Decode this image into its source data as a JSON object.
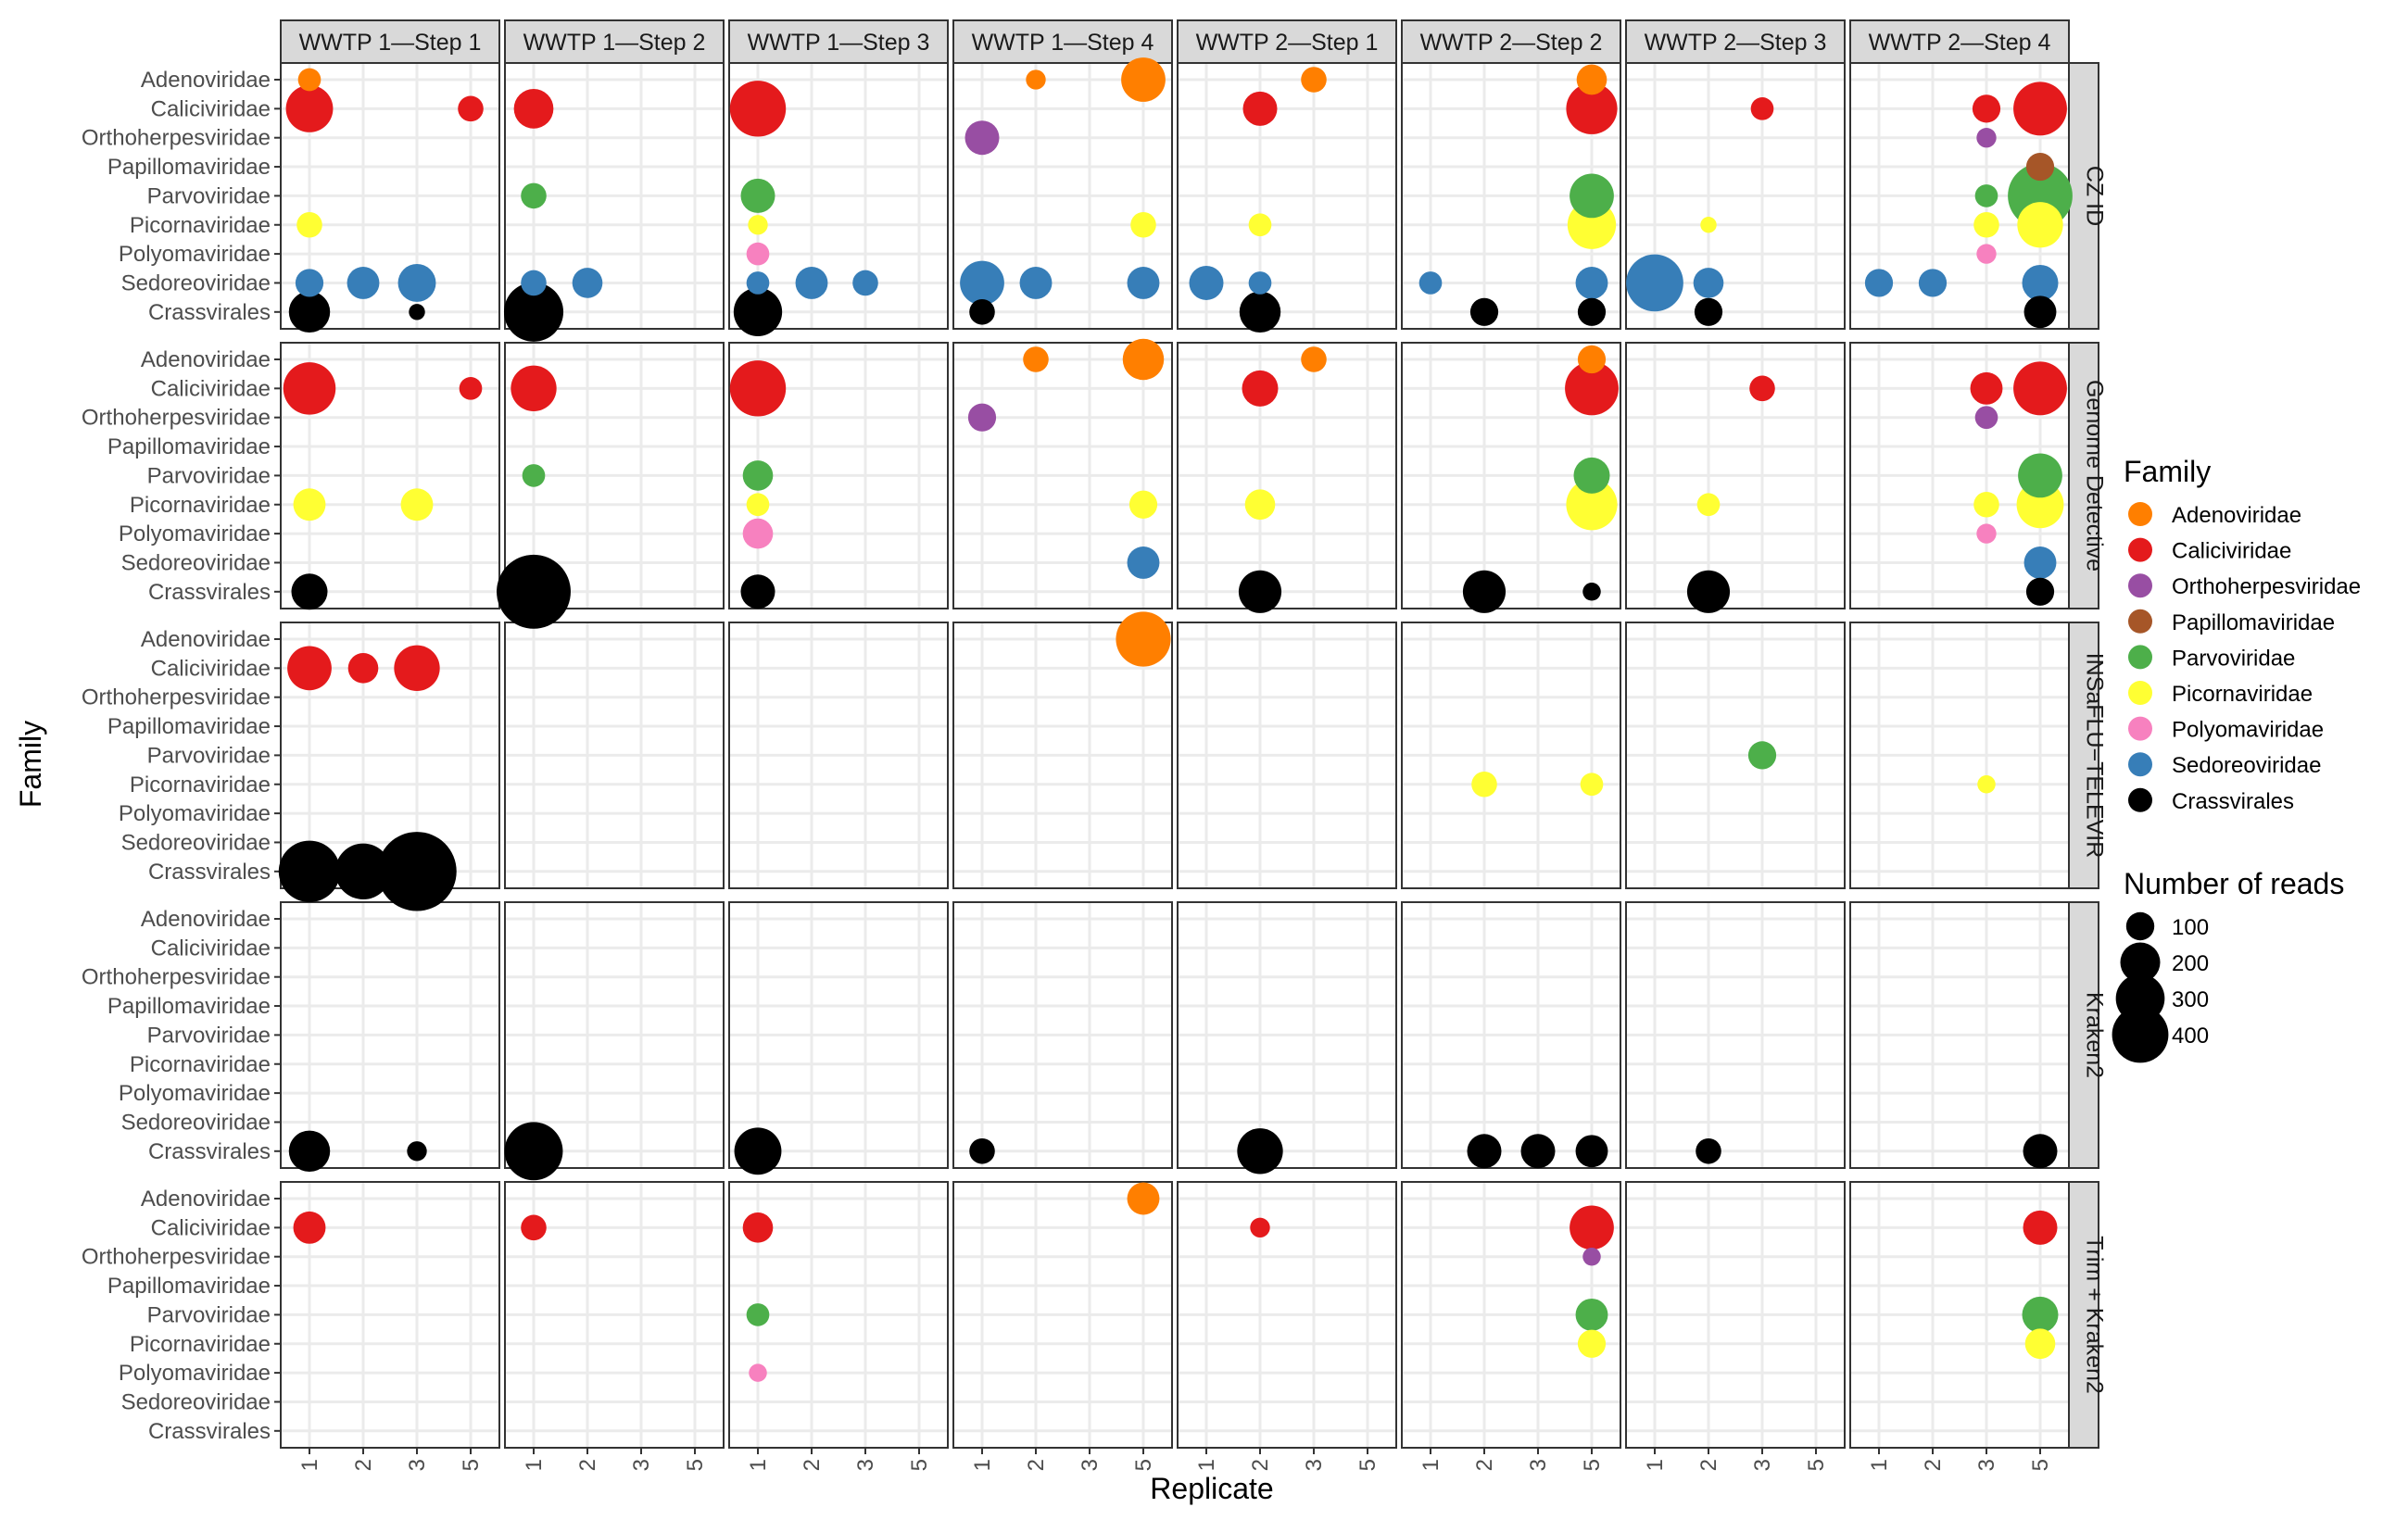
{
  "chart_data": {
    "type": "scatter",
    "xlabel": "Replicate",
    "ylabel": "Family",
    "x_ticks": [
      "1",
      "2",
      "3",
      "5"
    ],
    "x_values": [
      1,
      2,
      3,
      4
    ],
    "families": [
      "Adenoviridae",
      "Caliciviridae",
      "Orthoherpesviridae",
      "Papillomaviridae",
      "Parvoviridae",
      "Picornaviridae",
      "Polyomaviridae",
      "Sedoreoviridae",
      "Crassvirales"
    ],
    "colors": {
      "Adenoviridae": "#FF7F00",
      "Caliciviridae": "#E41A1C",
      "Orthoherpesviridae": "#984EA3",
      "Papillomaviridae": "#A65628",
      "Parvoviridae": "#4DAF4A",
      "Picornaviridae": "#FFFF33",
      "Polyomaviridae": "#F781BF",
      "Sedoreoviridae": "#377EB8",
      "Crassvirales": "#000000"
    },
    "columns": [
      "WWTP 1—Step 1",
      "WWTP 1—Step 2",
      "WWTP 1—Step 3",
      "WWTP 1—Step 4",
      "WWTP 2—Step 1",
      "WWTP 2—Step 2",
      "WWTP 2—Step 3",
      "WWTP 2—Step 4"
    ],
    "rows": [
      "CZ ID",
      "Genome Detective",
      "INSaFLU−TELEVIR",
      "Kraken2",
      "Trim + Kraken2"
    ],
    "legend": {
      "color_title": "Family",
      "size_title": "Number of reads",
      "size_breaks": [
        100,
        200,
        300,
        400
      ],
      "position": "right"
    },
    "grid": true,
    "points": [
      {
        "row": 0,
        "col": 0,
        "x": 1,
        "family": "Adenoviridae",
        "reads": 40
      },
      {
        "row": 0,
        "col": 0,
        "x": 1,
        "family": "Caliciviridae",
        "reads": 170
      },
      {
        "row": 0,
        "col": 0,
        "x": 4,
        "family": "Caliciviridae",
        "reads": 50
      },
      {
        "row": 0,
        "col": 0,
        "x": 1,
        "family": "Picornaviridae",
        "reads": 50
      },
      {
        "row": 0,
        "col": 0,
        "x": 1,
        "family": "Sedoreoviridae",
        "reads": 60
      },
      {
        "row": 0,
        "col": 0,
        "x": 2,
        "family": "Sedoreoviridae",
        "reads": 80
      },
      {
        "row": 0,
        "col": 0,
        "x": 3,
        "family": "Sedoreoviridae",
        "reads": 110
      },
      {
        "row": 0,
        "col": 0,
        "x": 1,
        "family": "Crassvirales",
        "reads": 130
      },
      {
        "row": 0,
        "col": 0,
        "x": 3,
        "family": "Crassvirales",
        "reads": 20
      },
      {
        "row": 0,
        "col": 1,
        "x": 1,
        "family": "Caliciviridae",
        "reads": 120
      },
      {
        "row": 0,
        "col": 1,
        "x": 1,
        "family": "Parvoviridae",
        "reads": 50
      },
      {
        "row": 0,
        "col": 1,
        "x": 1,
        "family": "Sedoreoviridae",
        "reads": 50
      },
      {
        "row": 0,
        "col": 1,
        "x": 2,
        "family": "Sedoreoviridae",
        "reads": 70
      },
      {
        "row": 0,
        "col": 1,
        "x": 1,
        "family": "Crassvirales",
        "reads": 270
      },
      {
        "row": 0,
        "col": 2,
        "x": 1,
        "family": "Caliciviridae",
        "reads": 240
      },
      {
        "row": 0,
        "col": 2,
        "x": 1,
        "family": "Parvoviridae",
        "reads": 90
      },
      {
        "row": 0,
        "col": 2,
        "x": 1,
        "family": "Picornaviridae",
        "reads": 30
      },
      {
        "row": 0,
        "col": 2,
        "x": 1,
        "family": "Polyomaviridae",
        "reads": 40
      },
      {
        "row": 0,
        "col": 2,
        "x": 1,
        "family": "Sedoreoviridae",
        "reads": 40
      },
      {
        "row": 0,
        "col": 2,
        "x": 2,
        "family": "Sedoreoviridae",
        "reads": 80
      },
      {
        "row": 0,
        "col": 2,
        "x": 3,
        "family": "Sedoreoviridae",
        "reads": 50
      },
      {
        "row": 0,
        "col": 2,
        "x": 1,
        "family": "Crassvirales",
        "reads": 180
      },
      {
        "row": 0,
        "col": 3,
        "x": 2,
        "family": "Adenoviridae",
        "reads": 30
      },
      {
        "row": 0,
        "col": 3,
        "x": 4,
        "family": "Adenoviridae",
        "reads": 150
      },
      {
        "row": 0,
        "col": 3,
        "x": 1,
        "family": "Orthoherpesviridae",
        "reads": 90
      },
      {
        "row": 0,
        "col": 3,
        "x": 4,
        "family": "Picornaviridae",
        "reads": 50
      },
      {
        "row": 0,
        "col": 3,
        "x": 1,
        "family": "Sedoreoviridae",
        "reads": 150
      },
      {
        "row": 0,
        "col": 3,
        "x": 2,
        "family": "Sedoreoviridae",
        "reads": 80
      },
      {
        "row": 0,
        "col": 3,
        "x": 4,
        "family": "Sedoreoviridae",
        "reads": 80
      },
      {
        "row": 0,
        "col": 3,
        "x": 1,
        "family": "Crassvirales",
        "reads": 50
      },
      {
        "row": 0,
        "col": 4,
        "x": 3,
        "family": "Adenoviridae",
        "reads": 50
      },
      {
        "row": 0,
        "col": 4,
        "x": 2,
        "family": "Caliciviridae",
        "reads": 90
      },
      {
        "row": 0,
        "col": 4,
        "x": 2,
        "family": "Picornaviridae",
        "reads": 40
      },
      {
        "row": 0,
        "col": 4,
        "x": 1,
        "family": "Sedoreoviridae",
        "reads": 90
      },
      {
        "row": 0,
        "col": 4,
        "x": 2,
        "family": "Sedoreoviridae",
        "reads": 40
      },
      {
        "row": 0,
        "col": 4,
        "x": 2,
        "family": "Crassvirales",
        "reads": 130
      },
      {
        "row": 0,
        "col": 5,
        "x": 4,
        "family": "Adenoviridae",
        "reads": 70
      },
      {
        "row": 0,
        "col": 5,
        "x": 4,
        "family": "Caliciviridae",
        "reads": 200
      },
      {
        "row": 0,
        "col": 5,
        "x": 4,
        "family": "Parvoviridae",
        "reads": 150
      },
      {
        "row": 0,
        "col": 5,
        "x": 4,
        "family": "Picornaviridae",
        "reads": 180
      },
      {
        "row": 0,
        "col": 5,
        "x": 1,
        "family": "Sedoreoviridae",
        "reads": 40
      },
      {
        "row": 0,
        "col": 5,
        "x": 4,
        "family": "Sedoreoviridae",
        "reads": 80
      },
      {
        "row": 0,
        "col": 5,
        "x": 2,
        "family": "Crassvirales",
        "reads": 60
      },
      {
        "row": 0,
        "col": 5,
        "x": 4,
        "family": "Crassvirales",
        "reads": 60
      },
      {
        "row": 0,
        "col": 6,
        "x": 3,
        "family": "Caliciviridae",
        "reads": 40
      },
      {
        "row": 0,
        "col": 6,
        "x": 2,
        "family": "Picornaviridae",
        "reads": 20
      },
      {
        "row": 0,
        "col": 6,
        "x": 1,
        "family": "Sedoreoviridae",
        "reads": 250
      },
      {
        "row": 0,
        "col": 6,
        "x": 2,
        "family": "Sedoreoviridae",
        "reads": 70
      },
      {
        "row": 0,
        "col": 6,
        "x": 2,
        "family": "Crassvirales",
        "reads": 60
      },
      {
        "row": 0,
        "col": 7,
        "x": 3,
        "family": "Caliciviridae",
        "reads": 60
      },
      {
        "row": 0,
        "col": 7,
        "x": 4,
        "family": "Caliciviridae",
        "reads": 220
      },
      {
        "row": 0,
        "col": 7,
        "x": 3,
        "family": "Orthoherpesviridae",
        "reads": 30
      },
      {
        "row": 0,
        "col": 7,
        "x": 4,
        "family": "Papillomaviridae",
        "reads": 60
      },
      {
        "row": 0,
        "col": 7,
        "x": 3,
        "family": "Parvoviridae",
        "reads": 40
      },
      {
        "row": 0,
        "col": 7,
        "x": 4,
        "family": "Parvoviridae",
        "reads": 320
      },
      {
        "row": 0,
        "col": 7,
        "x": 3,
        "family": "Picornaviridae",
        "reads": 50
      },
      {
        "row": 0,
        "col": 7,
        "x": 4,
        "family": "Picornaviridae",
        "reads": 160
      },
      {
        "row": 0,
        "col": 7,
        "x": 3,
        "family": "Polyomaviridae",
        "reads": 30
      },
      {
        "row": 0,
        "col": 7,
        "x": 1,
        "family": "Sedoreoviridae",
        "reads": 60
      },
      {
        "row": 0,
        "col": 7,
        "x": 2,
        "family": "Sedoreoviridae",
        "reads": 60
      },
      {
        "row": 0,
        "col": 7,
        "x": 4,
        "family": "Sedoreoviridae",
        "reads": 100
      },
      {
        "row": 0,
        "col": 7,
        "x": 4,
        "family": "Crassvirales",
        "reads": 80
      },
      {
        "row": 1,
        "col": 0,
        "x": 1,
        "family": "Caliciviridae",
        "reads": 210
      },
      {
        "row": 1,
        "col": 0,
        "x": 4,
        "family": "Caliciviridae",
        "reads": 40
      },
      {
        "row": 1,
        "col": 0,
        "x": 1,
        "family": "Picornaviridae",
        "reads": 80
      },
      {
        "row": 1,
        "col": 0,
        "x": 3,
        "family": "Picornaviridae",
        "reads": 80
      },
      {
        "row": 1,
        "col": 0,
        "x": 1,
        "family": "Crassvirales",
        "reads": 100
      },
      {
        "row": 1,
        "col": 1,
        "x": 1,
        "family": "Caliciviridae",
        "reads": 160
      },
      {
        "row": 1,
        "col": 1,
        "x": 1,
        "family": "Parvoviridae",
        "reads": 40
      },
      {
        "row": 1,
        "col": 1,
        "x": 1,
        "family": "Crassvirales",
        "reads": 420
      },
      {
        "row": 1,
        "col": 2,
        "x": 1,
        "family": "Caliciviridae",
        "reads": 240
      },
      {
        "row": 1,
        "col": 2,
        "x": 1,
        "family": "Parvoviridae",
        "reads": 70
      },
      {
        "row": 1,
        "col": 2,
        "x": 1,
        "family": "Picornaviridae",
        "reads": 40
      },
      {
        "row": 1,
        "col": 2,
        "x": 1,
        "family": "Polyomaviridae",
        "reads": 70
      },
      {
        "row": 1,
        "col": 2,
        "x": 1,
        "family": "Crassvirales",
        "reads": 90
      },
      {
        "row": 1,
        "col": 3,
        "x": 2,
        "family": "Adenoviridae",
        "reads": 50
      },
      {
        "row": 1,
        "col": 3,
        "x": 4,
        "family": "Adenoviridae",
        "reads": 130
      },
      {
        "row": 1,
        "col": 3,
        "x": 1,
        "family": "Orthoherpesviridae",
        "reads": 60
      },
      {
        "row": 1,
        "col": 3,
        "x": 4,
        "family": "Picornaviridae",
        "reads": 60
      },
      {
        "row": 1,
        "col": 3,
        "x": 4,
        "family": "Sedoreoviridae",
        "reads": 80
      },
      {
        "row": 1,
        "col": 4,
        "x": 3,
        "family": "Adenoviridae",
        "reads": 50
      },
      {
        "row": 1,
        "col": 4,
        "x": 2,
        "family": "Caliciviridae",
        "reads": 100
      },
      {
        "row": 1,
        "col": 4,
        "x": 2,
        "family": "Picornaviridae",
        "reads": 70
      },
      {
        "row": 1,
        "col": 4,
        "x": 2,
        "family": "Crassvirales",
        "reads": 140
      },
      {
        "row": 1,
        "col": 5,
        "x": 4,
        "family": "Adenoviridae",
        "reads": 60
      },
      {
        "row": 1,
        "col": 5,
        "x": 4,
        "family": "Caliciviridae",
        "reads": 220
      },
      {
        "row": 1,
        "col": 5,
        "x": 4,
        "family": "Parvoviridae",
        "reads": 100
      },
      {
        "row": 1,
        "col": 5,
        "x": 4,
        "family": "Picornaviridae",
        "reads": 200
      },
      {
        "row": 1,
        "col": 5,
        "x": 2,
        "family": "Crassvirales",
        "reads": 140
      },
      {
        "row": 1,
        "col": 5,
        "x": 4,
        "family": "Crassvirales",
        "reads": 25
      },
      {
        "row": 1,
        "col": 6,
        "x": 3,
        "family": "Caliciviridae",
        "reads": 50
      },
      {
        "row": 1,
        "col": 6,
        "x": 2,
        "family": "Picornaviridae",
        "reads": 40
      },
      {
        "row": 1,
        "col": 6,
        "x": 2,
        "family": "Crassvirales",
        "reads": 140
      },
      {
        "row": 1,
        "col": 7,
        "x": 3,
        "family": "Caliciviridae",
        "reads": 80
      },
      {
        "row": 1,
        "col": 7,
        "x": 4,
        "family": "Caliciviridae",
        "reads": 220
      },
      {
        "row": 1,
        "col": 7,
        "x": 3,
        "family": "Orthoherpesviridae",
        "reads": 40
      },
      {
        "row": 1,
        "col": 7,
        "x": 4,
        "family": "Parvoviridae",
        "reads": 150
      },
      {
        "row": 1,
        "col": 7,
        "x": 3,
        "family": "Picornaviridae",
        "reads": 50
      },
      {
        "row": 1,
        "col": 7,
        "x": 4,
        "family": "Picornaviridae",
        "reads": 170
      },
      {
        "row": 1,
        "col": 7,
        "x": 3,
        "family": "Polyomaviridae",
        "reads": 30
      },
      {
        "row": 1,
        "col": 7,
        "x": 4,
        "family": "Sedoreoviridae",
        "reads": 80
      },
      {
        "row": 1,
        "col": 7,
        "x": 4,
        "family": "Crassvirales",
        "reads": 60
      },
      {
        "row": 2,
        "col": 0,
        "x": 1,
        "family": "Caliciviridae",
        "reads": 150
      },
      {
        "row": 2,
        "col": 0,
        "x": 2,
        "family": "Caliciviridae",
        "reads": 70
      },
      {
        "row": 2,
        "col": 0,
        "x": 3,
        "family": "Caliciviridae",
        "reads": 160
      },
      {
        "row": 2,
        "col": 0,
        "x": 1,
        "family": "Crassvirales",
        "reads": 290
      },
      {
        "row": 2,
        "col": 0,
        "x": 2,
        "family": "Crassvirales",
        "reads": 240
      },
      {
        "row": 2,
        "col": 0,
        "x": 3,
        "family": "Crassvirales",
        "reads": 480
      },
      {
        "row": 2,
        "col": 3,
        "x": 4,
        "family": "Adenoviridae",
        "reads": 230
      },
      {
        "row": 2,
        "col": 5,
        "x": 2,
        "family": "Picornaviridae",
        "reads": 50
      },
      {
        "row": 2,
        "col": 5,
        "x": 4,
        "family": "Picornaviridae",
        "reads": 40
      },
      {
        "row": 2,
        "col": 6,
        "x": 3,
        "family": "Parvoviridae",
        "reads": 60
      },
      {
        "row": 2,
        "col": 7,
        "x": 3,
        "family": "Picornaviridae",
        "reads": 25
      },
      {
        "row": 3,
        "col": 0,
        "x": 1,
        "family": "Crassvirales",
        "reads": 130
      },
      {
        "row": 3,
        "col": 0,
        "x": 3,
        "family": "Crassvirales",
        "reads": 30
      },
      {
        "row": 3,
        "col": 1,
        "x": 1,
        "family": "Crassvirales",
        "reads": 260
      },
      {
        "row": 3,
        "col": 2,
        "x": 1,
        "family": "Crassvirales",
        "reads": 170
      },
      {
        "row": 3,
        "col": 3,
        "x": 1,
        "family": "Crassvirales",
        "reads": 50
      },
      {
        "row": 3,
        "col": 4,
        "x": 2,
        "family": "Crassvirales",
        "reads": 160
      },
      {
        "row": 3,
        "col": 5,
        "x": 2,
        "family": "Crassvirales",
        "reads": 90
      },
      {
        "row": 3,
        "col": 5,
        "x": 3,
        "family": "Crassvirales",
        "reads": 90
      },
      {
        "row": 3,
        "col": 5,
        "x": 4,
        "family": "Crassvirales",
        "reads": 80
      },
      {
        "row": 3,
        "col": 6,
        "x": 2,
        "family": "Crassvirales",
        "reads": 50
      },
      {
        "row": 3,
        "col": 7,
        "x": 4,
        "family": "Crassvirales",
        "reads": 90
      },
      {
        "row": 4,
        "col": 0,
        "x": 1,
        "family": "Caliciviridae",
        "reads": 80
      },
      {
        "row": 4,
        "col": 1,
        "x": 1,
        "family": "Caliciviridae",
        "reads": 50
      },
      {
        "row": 4,
        "col": 2,
        "x": 1,
        "family": "Caliciviridae",
        "reads": 70
      },
      {
        "row": 4,
        "col": 2,
        "x": 1,
        "family": "Parvoviridae",
        "reads": 40
      },
      {
        "row": 4,
        "col": 2,
        "x": 1,
        "family": "Polyomaviridae",
        "reads": 25
      },
      {
        "row": 4,
        "col": 3,
        "x": 4,
        "family": "Adenoviridae",
        "reads": 80
      },
      {
        "row": 4,
        "col": 4,
        "x": 2,
        "family": "Caliciviridae",
        "reads": 30
      },
      {
        "row": 4,
        "col": 5,
        "x": 4,
        "family": "Caliciviridae",
        "reads": 150
      },
      {
        "row": 4,
        "col": 5,
        "x": 4,
        "family": "Orthoherpesviridae",
        "reads": 25
      },
      {
        "row": 4,
        "col": 5,
        "x": 4,
        "family": "Parvoviridae",
        "reads": 80
      },
      {
        "row": 4,
        "col": 5,
        "x": 4,
        "family": "Picornaviridae",
        "reads": 60
      },
      {
        "row": 4,
        "col": 7,
        "x": 4,
        "family": "Caliciviridae",
        "reads": 90
      },
      {
        "row": 4,
        "col": 7,
        "x": 4,
        "family": "Parvoviridae",
        "reads": 100
      },
      {
        "row": 4,
        "col": 7,
        "x": 4,
        "family": "Picornaviridae",
        "reads": 70
      }
    ]
  }
}
